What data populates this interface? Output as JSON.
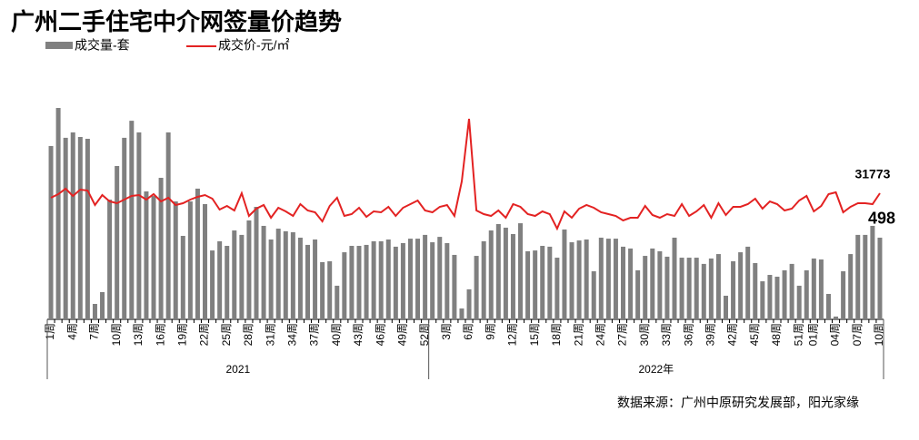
{
  "chart_data": {
    "type": "bar-line",
    "title": "广州二手住宅中介网签量价趋势",
    "source": "数据来源：广州中原研究发展部，阳光家缘",
    "groups": [
      "2021",
      "2022年"
    ],
    "categories": [
      "1周",
      null,
      null,
      "4周",
      null,
      null,
      "7周",
      null,
      null,
      "10周",
      null,
      null,
      "13周",
      null,
      null,
      "16周",
      null,
      null,
      "19周",
      null,
      null,
      "22周",
      null,
      null,
      "25周",
      null,
      null,
      "28周",
      null,
      null,
      "31周",
      null,
      null,
      "34周",
      null,
      null,
      "37周",
      null,
      null,
      "40周",
      null,
      null,
      "43周",
      null,
      null,
      "46周",
      null,
      null,
      "49周",
      null,
      null,
      "52周",
      null,
      null,
      "3周",
      null,
      null,
      "6周",
      null,
      null,
      "9周",
      null,
      null,
      "12周",
      null,
      null,
      "15周",
      null,
      null,
      "18周",
      null,
      null,
      "21周",
      null,
      null,
      "24周",
      null,
      null,
      "27周",
      null,
      null,
      "30周",
      null,
      null,
      "33周",
      null,
      null,
      "36周",
      null,
      null,
      "39周",
      null,
      null,
      "42周",
      null,
      null,
      "45周",
      null,
      null,
      "48周",
      null,
      null,
      "51周",
      null,
      "01周",
      null,
      null,
      "04周",
      null,
      null,
      "07周",
      null,
      null,
      "10周"
    ],
    "series": [
      {
        "name": "成交量-套",
        "color": "#808080",
        "kind": "bar",
        "values": [
          1057,
          1289,
          1107,
          1140,
          1112,
          1101,
          94,
          166,
          730,
          935,
          1107,
          1211,
          1140,
          780,
          752,
          863,
          1140,
          719,
          509,
          719,
          797,
          703,
          420,
          476,
          448,
          542,
          515,
          603,
          686,
          570,
          487,
          553,
          537,
          531,
          498,
          454,
          487,
          349,
          354,
          205,
          409,
          448,
          448,
          454,
          476,
          476,
          487,
          443,
          465,
          492,
          492,
          515,
          470,
          503,
          465,
          393,
          66,
          183,
          387,
          476,
          542,
          581,
          559,
          520,
          586,
          415,
          420,
          448,
          443,
          376,
          548,
          470,
          481,
          487,
          293,
          498,
          492,
          492,
          443,
          432,
          299,
          387,
          432,
          415,
          382,
          498,
          376,
          376,
          376,
          338,
          371,
          398,
          144,
          354,
          409,
          443,
          343,
          232,
          271,
          260,
          299,
          338,
          205,
          299,
          371,
          365,
          155,
          17,
          293,
          398,
          515,
          515,
          570,
          498
        ]
      },
      {
        "name": "成交价-元/㎡",
        "color": "#e32222",
        "kind": "line",
        "axis": "y2",
        "values": [
          31623,
          31743,
          31923,
          31683,
          31893,
          31863,
          31383,
          31713,
          31503,
          31443,
          31563,
          31683,
          31713,
          31563,
          31743,
          31503,
          31623,
          31383,
          31443,
          31563,
          31653,
          31713,
          31593,
          31233,
          31353,
          31203,
          31773,
          31023,
          31263,
          31383,
          30963,
          31293,
          31173,
          31023,
          31413,
          31203,
          31143,
          30843,
          31353,
          31623,
          31023,
          31083,
          31293,
          30993,
          31173,
          31143,
          31323,
          31023,
          31293,
          31413,
          31533,
          31203,
          31143,
          31323,
          31383,
          31023,
          32163,
          34233,
          31203,
          31083,
          31023,
          31203,
          30963,
          31413,
          31323,
          31083,
          31023,
          31173,
          31083,
          30603,
          31173,
          30963,
          31263,
          31383,
          31293,
          31143,
          31083,
          31023,
          30873,
          30963,
          30963,
          31353,
          31053,
          30963,
          31083,
          31023,
          31413,
          31023,
          31173,
          31383,
          30963,
          31443,
          31053,
          31323,
          31323,
          31413,
          31593,
          31263,
          31503,
          31413,
          31203,
          31263,
          31533,
          31683,
          31173,
          31353,
          31743,
          31803,
          31143,
          31323,
          31443,
          31443,
          31413,
          31773
        ]
      }
    ]
  }
}
